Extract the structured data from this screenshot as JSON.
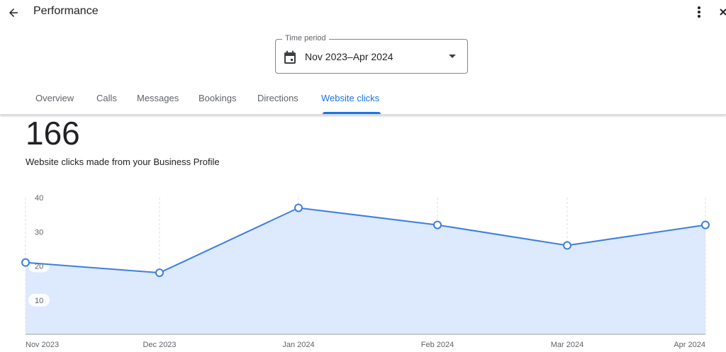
{
  "header": {
    "title": "Performance",
    "back_icon": "arrow-left-icon",
    "more_icon": "more-vert-icon",
    "close_icon": "close-icon"
  },
  "time_period": {
    "label": "Time period",
    "value": "Nov 2023–Apr 2024",
    "icon": "calendar-icon"
  },
  "tabs": [
    {
      "label": "Overview",
      "active": false
    },
    {
      "label": "Calls",
      "active": false
    },
    {
      "label": "Messages",
      "active": false
    },
    {
      "label": "Bookings",
      "active": false
    },
    {
      "label": "Directions",
      "active": false
    },
    {
      "label": "Website clicks",
      "active": true
    }
  ],
  "summary": {
    "total": "166",
    "description": "Website clicks made from your Business Profile"
  },
  "colors": {
    "accent": "#1a73e8",
    "line": "#3d7fe0",
    "fill": "#dde9fc"
  },
  "chart_data": {
    "type": "area",
    "categories": [
      "Nov 2023",
      "Dec 2023",
      "Jan 2024",
      "Feb 2024",
      "Mar 2024",
      "Apr 2024"
    ],
    "values": [
      21,
      18,
      37,
      32,
      26,
      32
    ],
    "y_ticks": [
      "10",
      "20",
      "30",
      "40"
    ],
    "ylim": [
      0,
      40
    ],
    "grid": "vertical-dashed"
  }
}
